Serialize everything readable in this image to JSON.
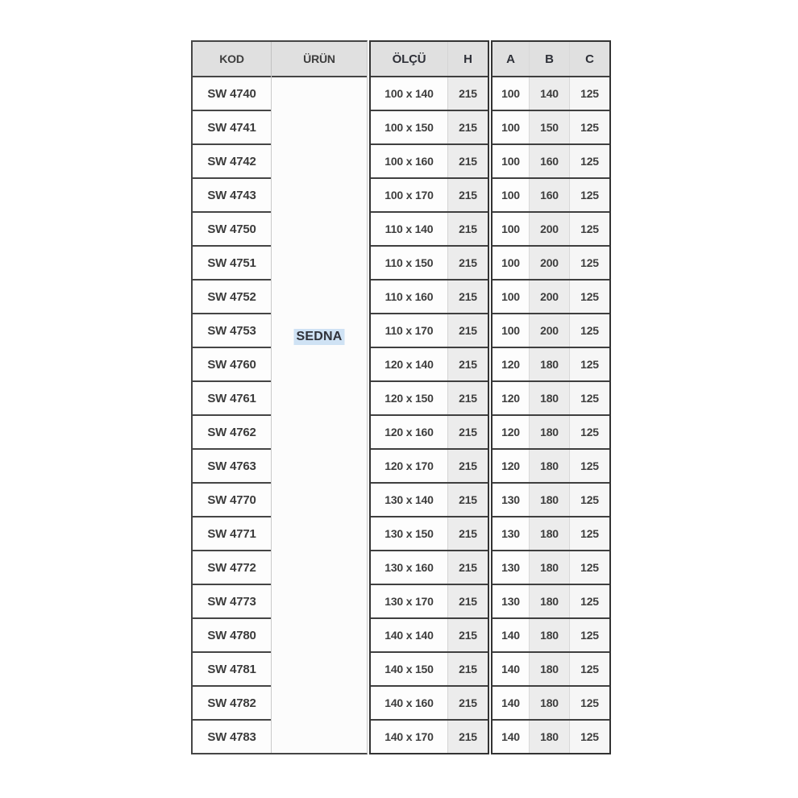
{
  "table": {
    "headers": {
      "kod": "KOD",
      "urun": "ÜRÜN",
      "olcu": "ÖLÇÜ",
      "h": "H",
      "a": "A",
      "b": "B",
      "c": "C"
    },
    "product": "SEDNA",
    "rows": [
      {
        "kod": "SW 4740",
        "olcu": "100 x 140",
        "h": "215",
        "a": "100",
        "b": "140",
        "c": "125"
      },
      {
        "kod": "SW 4741",
        "olcu": "100 x 150",
        "h": "215",
        "a": "100",
        "b": "150",
        "c": "125"
      },
      {
        "kod": "SW 4742",
        "olcu": "100 x 160",
        "h": "215",
        "a": "100",
        "b": "160",
        "c": "125"
      },
      {
        "kod": "SW 4743",
        "olcu": "100 x 170",
        "h": "215",
        "a": "100",
        "b": "160",
        "c": "125"
      },
      {
        "kod": "SW 4750",
        "olcu": "110 x 140",
        "h": "215",
        "a": "100",
        "b": "200",
        "c": "125"
      },
      {
        "kod": "SW 4751",
        "olcu": "110 x 150",
        "h": "215",
        "a": "100",
        "b": "200",
        "c": "125"
      },
      {
        "kod": "SW 4752",
        "olcu": "110 x 160",
        "h": "215",
        "a": "100",
        "b": "200",
        "c": "125"
      },
      {
        "kod": "SW 4753",
        "olcu": "110 x 170",
        "h": "215",
        "a": "100",
        "b": "200",
        "c": "125"
      },
      {
        "kod": "SW 4760",
        "olcu": "120 x 140",
        "h": "215",
        "a": "120",
        "b": "180",
        "c": "125"
      },
      {
        "kod": "SW 4761",
        "olcu": "120 x 150",
        "h": "215",
        "a": "120",
        "b": "180",
        "c": "125"
      },
      {
        "kod": "SW 4762",
        "olcu": "120 x 160",
        "h": "215",
        "a": "120",
        "b": "180",
        "c": "125"
      },
      {
        "kod": "SW 4763",
        "olcu": "120 x 170",
        "h": "215",
        "a": "120",
        "b": "180",
        "c": "125"
      },
      {
        "kod": "SW 4770",
        "olcu": "130 x 140",
        "h": "215",
        "a": "130",
        "b": "180",
        "c": "125"
      },
      {
        "kod": "SW 4771",
        "olcu": "130 x 150",
        "h": "215",
        "a": "130",
        "b": "180",
        "c": "125"
      },
      {
        "kod": "SW 4772",
        "olcu": "130 x 160",
        "h": "215",
        "a": "130",
        "b": "180",
        "c": "125"
      },
      {
        "kod": "SW 4773",
        "olcu": "130 x 170",
        "h": "215",
        "a": "130",
        "b": "180",
        "c": "125"
      },
      {
        "kod": "SW 4780",
        "olcu": "140 x 140",
        "h": "215",
        "a": "140",
        "b": "180",
        "c": "125"
      },
      {
        "kod": "SW 4781",
        "olcu": "140 x 150",
        "h": "215",
        "a": "140",
        "b": "180",
        "c": "125"
      },
      {
        "kod": "SW 4782",
        "olcu": "140 x 160",
        "h": "215",
        "a": "140",
        "b": "180",
        "c": "125"
      },
      {
        "kod": "SW 4783",
        "olcu": "140 x 170",
        "h": "215",
        "a": "140",
        "b": "180",
        "c": "125"
      }
    ],
    "colors": {
      "header_bg": "#e0e0e0",
      "band_bg": "#ececec",
      "highlight_bg": "#cfe2f4",
      "border_dark": "#3f3f3f",
      "border_light": "#c9c9c9",
      "text": "#3e3e3e"
    }
  }
}
